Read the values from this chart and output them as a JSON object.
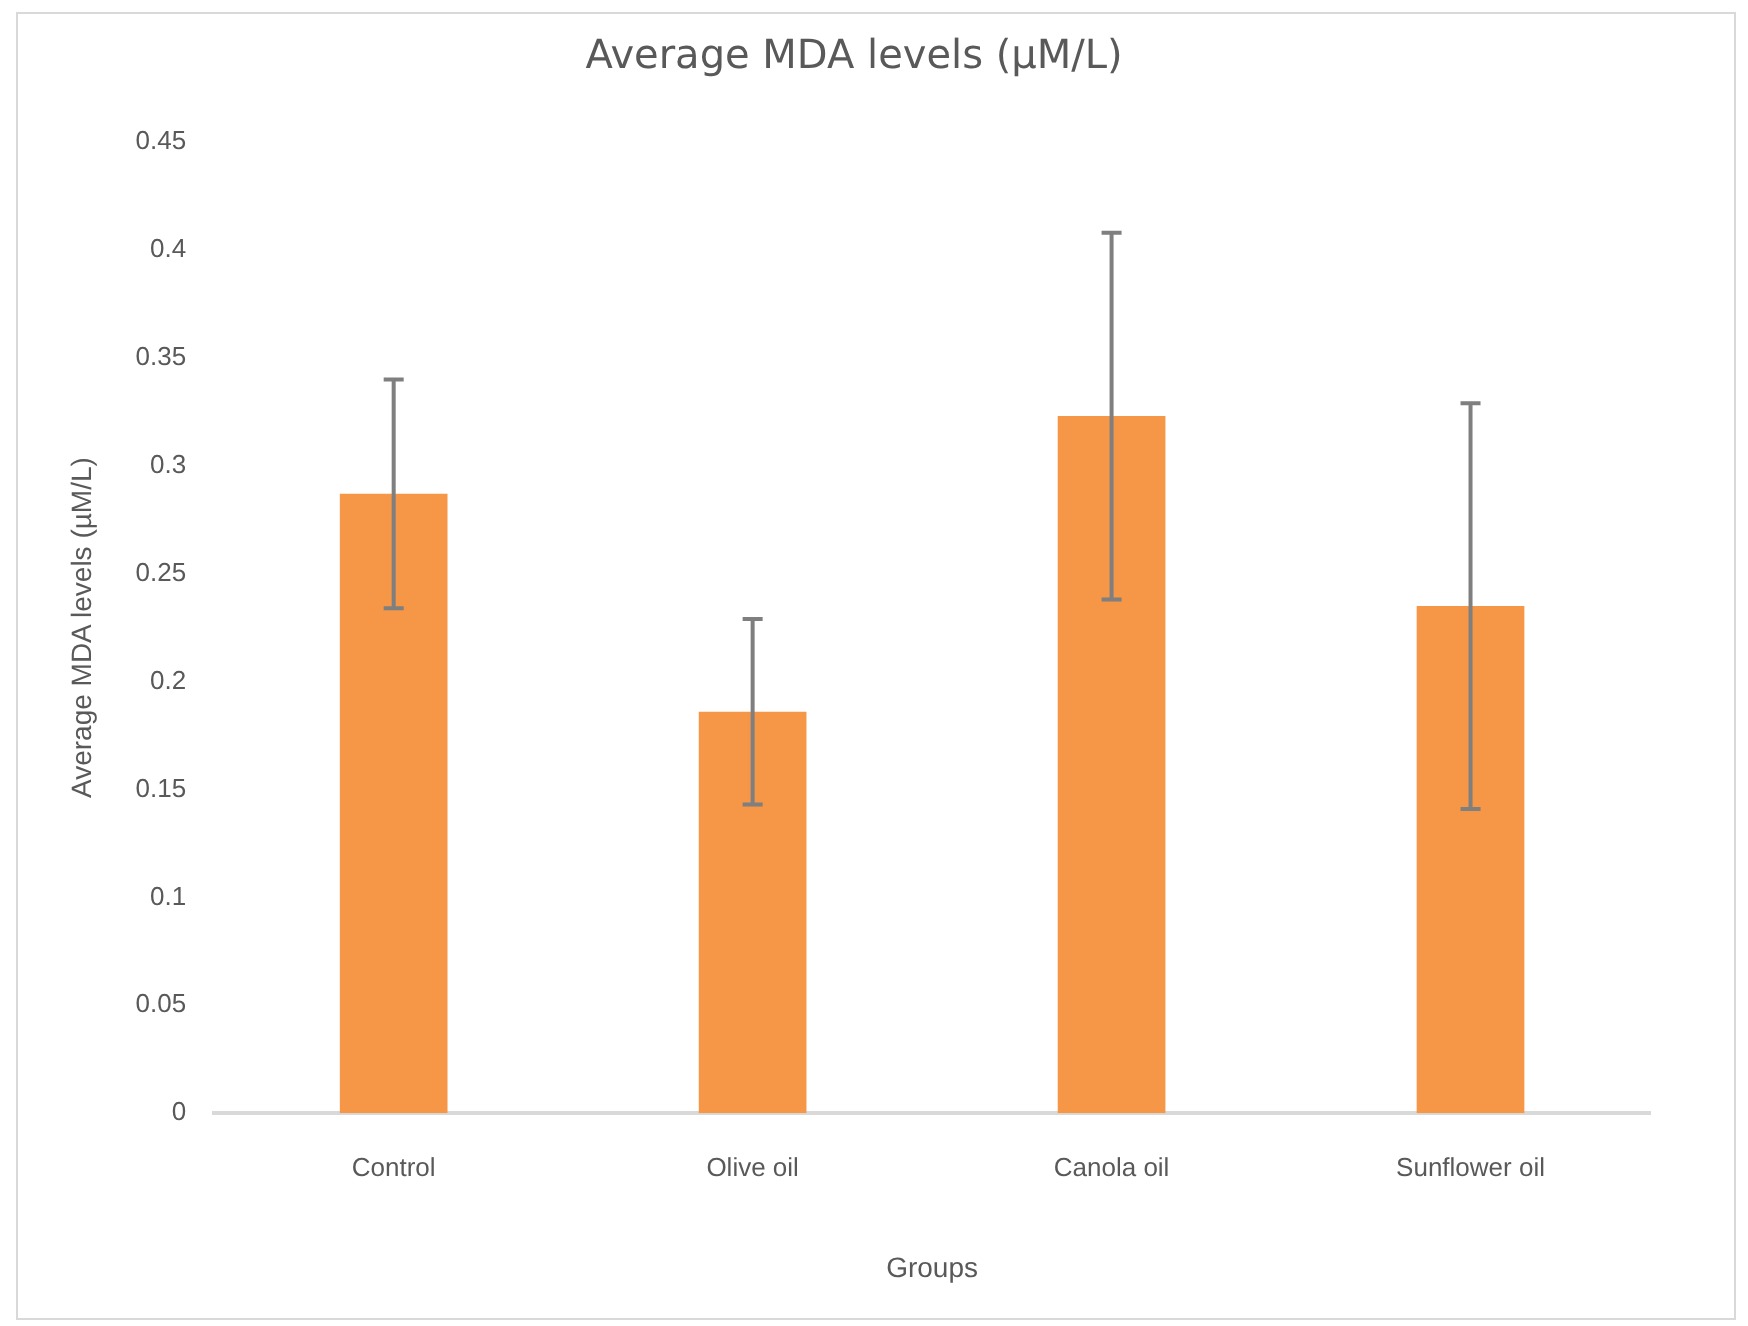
{
  "chart_data": {
    "type": "bar",
    "title": "Average MDA levels (µM/L)",
    "xlabel": "Groups",
    "ylabel": "Average MDA levels (µM/L)",
    "categories": [
      "Control",
      "Olive oil",
      "Canola oil",
      "Sunflower oil"
    ],
    "values": [
      0.287,
      0.186,
      0.323,
      0.235
    ],
    "errors": [
      0.053,
      0.043,
      0.085,
      0.094
    ],
    "color": "#f59746",
    "ylim": [
      0,
      0.45
    ],
    "yticks": [
      0,
      0.05,
      0.1,
      0.15,
      0.2,
      0.25,
      0.3,
      0.35,
      0.4,
      0.45
    ],
    "grid": false,
    "legend": false
  }
}
